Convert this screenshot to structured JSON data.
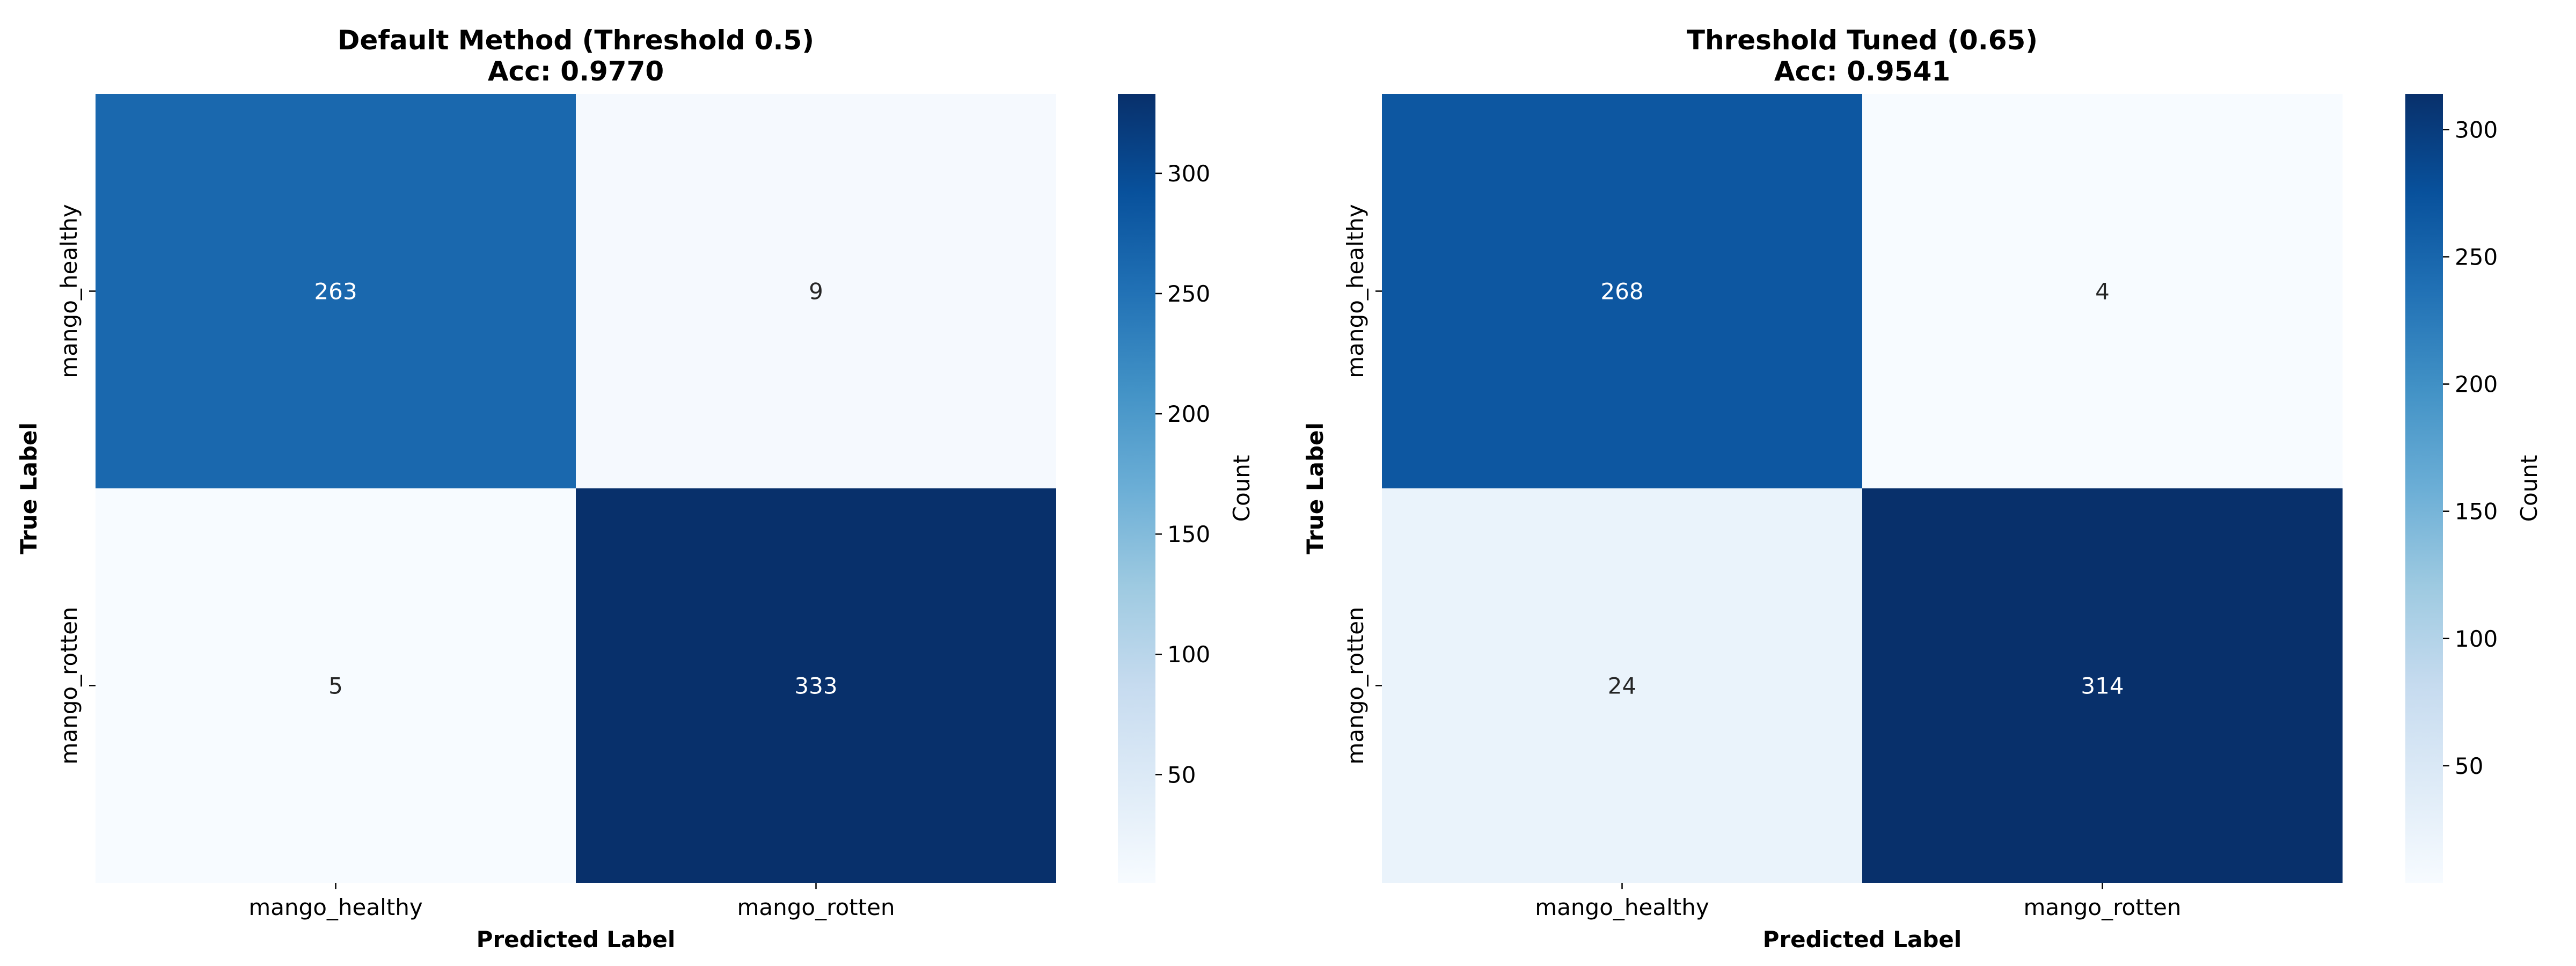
{
  "chart_data": [
    {
      "type": "heatmap",
      "title": "Default Method (Threshold 0.5)",
      "subtitle": "Acc: 0.9770",
      "xlabel": "Predicted Label",
      "ylabel": "True Label",
      "x_categories": [
        "mango_healthy",
        "mango_rotten"
      ],
      "y_categories": [
        "mango_healthy",
        "mango_rotten"
      ],
      "values": [
        [
          263,
          9
        ],
        [
          5,
          333
        ]
      ],
      "colormap": "Blues",
      "colorbar": {
        "label": "Count",
        "range": [
          5,
          333
        ],
        "ticks": [
          50,
          100,
          150,
          200,
          250,
          300
        ]
      }
    },
    {
      "type": "heatmap",
      "title": "Threshold Tuned (0.65)",
      "subtitle": "Acc: 0.9541",
      "xlabel": "Predicted Label",
      "ylabel": "True Label",
      "x_categories": [
        "mango_healthy",
        "mango_rotten"
      ],
      "y_categories": [
        "mango_healthy",
        "mango_rotten"
      ],
      "values": [
        [
          268,
          4
        ],
        [
          24,
          314
        ]
      ],
      "colormap": "Blues",
      "colorbar": {
        "label": "Count",
        "range": [
          4,
          314
        ],
        "ticks": [
          50,
          100,
          150,
          200,
          250,
          300
        ]
      }
    }
  ]
}
